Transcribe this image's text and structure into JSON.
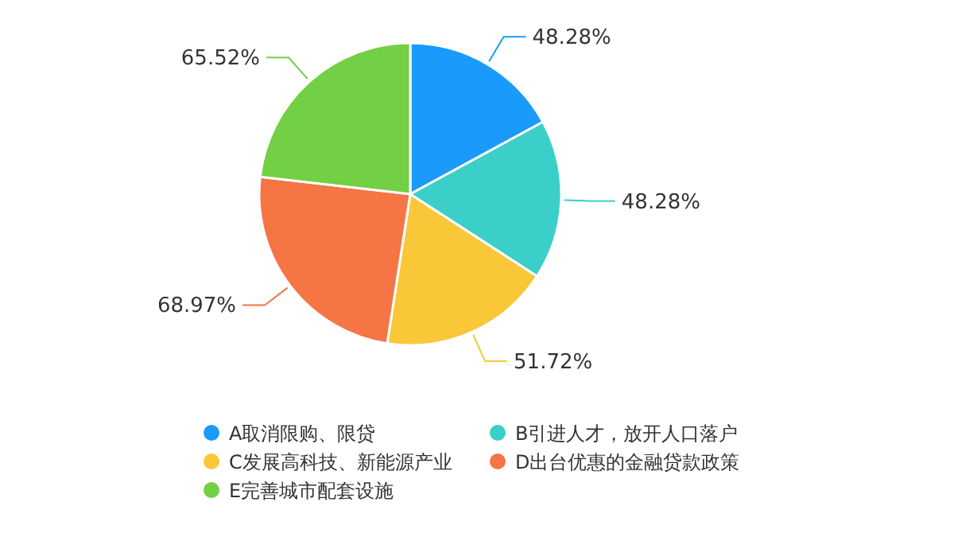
{
  "chart_data": {
    "type": "pie",
    "categories": [
      "A取消限购、限贷",
      "B引进人才，放开人口落户",
      "C发展高科技、新能源产业",
      "D出台优惠的金融贷款政策",
      "E完善城市配套设施"
    ],
    "values": [
      48.28,
      48.28,
      51.72,
      68.97,
      65.52
    ],
    "colors": [
      "#1a9bfc",
      "#3acfc9",
      "#fac739",
      "#f57545",
      "#73cf43"
    ],
    "value_labels": [
      "48.28%",
      "48.28%",
      "51.72%",
      "68.97%",
      "65.52%"
    ],
    "legend": "bottom"
  }
}
